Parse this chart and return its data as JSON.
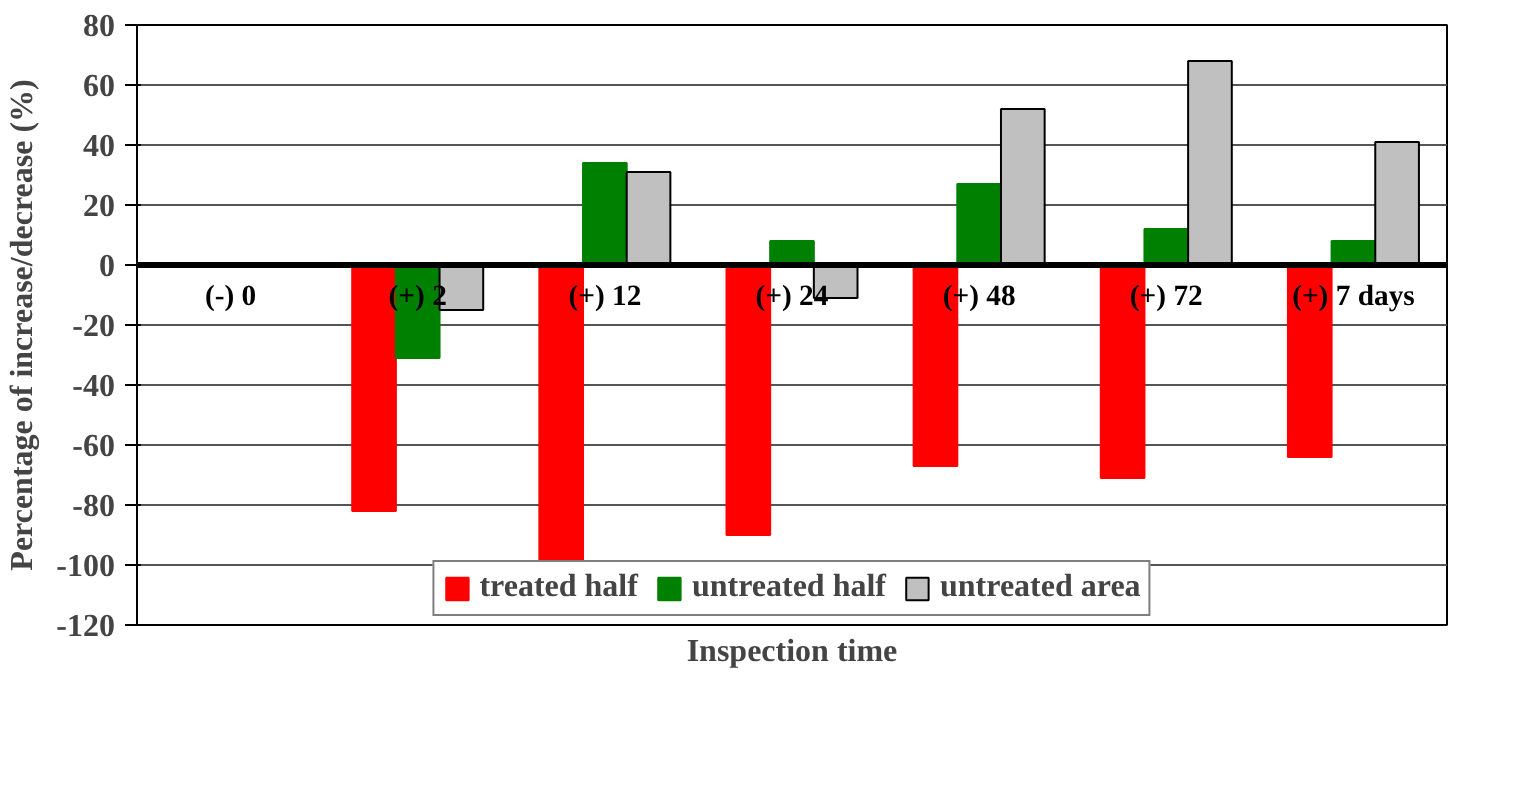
{
  "chart_data": {
    "type": "bar",
    "xlabel": "Inspection time",
    "ylabel": "Percentage of increase/decrease (%)",
    "categories": [
      "(-) 0",
      "(+) 2",
      "(+) 12",
      "(+) 24",
      "(+) 48",
      "(+) 72",
      "(+) 7 days"
    ],
    "series": [
      {
        "name": "treated half",
        "color": "#ff0000",
        "values": [
          null,
          -82,
          -100,
          -90,
          -67,
          -71,
          -64
        ]
      },
      {
        "name": "untreated half",
        "color": "#008000",
        "values": [
          null,
          -31,
          34,
          8,
          27,
          12,
          8
        ]
      },
      {
        "name": "untreated area",
        "color": "#c0c0c0",
        "values": [
          null,
          -15,
          31,
          -11,
          52,
          68,
          41
        ]
      }
    ],
    "ylim": [
      -120,
      80
    ],
    "yticks": [
      -120,
      -100,
      -80,
      -60,
      -40,
      -20,
      0,
      20,
      40,
      60,
      80
    ],
    "grid": "y",
    "legend": "bottom"
  }
}
